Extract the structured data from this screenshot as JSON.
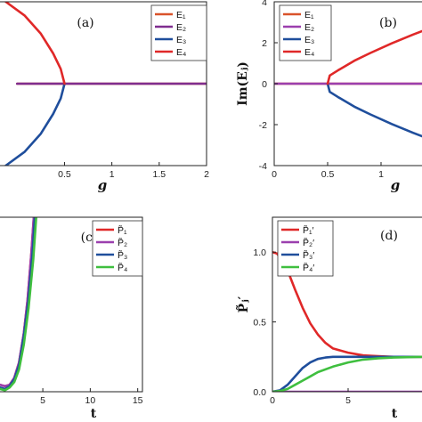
{
  "chart_data": [
    {
      "panel": "(a)",
      "type": "line",
      "xlabel": "g",
      "ylabel": "",
      "xlim": [
        -0.2,
        2
      ],
      "ylim": [
        -1,
        1
      ],
      "xticks": [
        "0.5",
        "1",
        "1.5",
        "2"
      ],
      "xtick_values": [
        0.5,
        1,
        1.5,
        2
      ],
      "legend": "top-right",
      "series": [
        {
          "name": "E₁",
          "color": "#d9532a",
          "x": [
            0,
            2
          ],
          "y": [
            0,
            0
          ]
        },
        {
          "name": "E₂",
          "color": "#7f2d8f",
          "x": [
            0,
            2
          ],
          "y": [
            0,
            0
          ]
        },
        {
          "name": "E₃",
          "color": "#1f4e9c",
          "x": [
            -0.3,
            -0.12,
            0.08,
            0.25,
            0.38,
            0.46,
            0.5
          ],
          "y": [
            -1.5,
            -1.0,
            -0.83,
            -0.61,
            -0.37,
            -0.18,
            0
          ]
        },
        {
          "name": "E₄",
          "color": "#e02828",
          "x": [
            -0.3,
            -0.12,
            0.08,
            0.25,
            0.38,
            0.46,
            0.5
          ],
          "y": [
            1.5,
            1.0,
            0.83,
            0.61,
            0.37,
            0.18,
            0
          ]
        }
      ]
    },
    {
      "panel": "(b)",
      "type": "line",
      "xlabel": "g",
      "ylabel": "Im(Eⱼ)",
      "xlim": [
        0,
        1.4
      ],
      "ylim": [
        -4,
        4
      ],
      "xticks": [
        "0",
        "0.5",
        "1"
      ],
      "xtick_values": [
        0,
        0.5,
        1
      ],
      "yticks": [
        "-4",
        "-2",
        "0",
        "2",
        "4"
      ],
      "ytick_values": [
        -4,
        -2,
        0,
        2,
        4
      ],
      "legend": "top-left",
      "series": [
        {
          "name": "E₁",
          "color": "#d9532a",
          "x": [
            0,
            1.4
          ],
          "y": [
            0,
            0
          ]
        },
        {
          "name": "E₂",
          "color": "#9b3fae",
          "x": [
            0,
            1.4
          ],
          "y": [
            0,
            0
          ]
        },
        {
          "name": "E₃",
          "color": "#1f4e9c",
          "x": [
            0.5,
            0.52,
            0.6,
            0.75,
            0.9,
            1.1,
            1.3,
            1.4
          ],
          "y": [
            0,
            -0.4,
            -0.66,
            -1.12,
            -1.5,
            -1.97,
            -2.4,
            -2.6
          ]
        },
        {
          "name": "E₄",
          "color": "#e02828",
          "x": [
            0.5,
            0.52,
            0.6,
            0.75,
            0.9,
            1.1,
            1.3,
            1.4
          ],
          "y": [
            0,
            0.4,
            0.66,
            1.12,
            1.5,
            1.97,
            2.4,
            2.6
          ]
        }
      ]
    },
    {
      "panel": "(c)",
      "type": "line",
      "xlabel": "t",
      "ylabel": "",
      "xlim": [
        0.3,
        15.5
      ],
      "ylim": [
        0,
        1.25
      ],
      "xticks": [
        "5",
        "10",
        "15"
      ],
      "xtick_values": [
        5,
        10,
        15
      ],
      "legend": "top-right",
      "series": [
        {
          "name": "P̃₁",
          "color": "#e02828",
          "x": [
            0.5,
            1.0,
            1.5,
            2.0,
            2.5,
            3.0,
            3.4,
            3.8,
            4.1
          ],
          "y": [
            0.05,
            0.04,
            0.05,
            0.1,
            0.21,
            0.42,
            0.66,
            1.0,
            1.3
          ]
        },
        {
          "name": "P̃₂",
          "color": "#9b3fae",
          "x": [
            0.5,
            1.0,
            1.5,
            2.0,
            2.5,
            3.0,
            3.4,
            3.8,
            4.1
          ],
          "y": [
            0.05,
            0.04,
            0.05,
            0.1,
            0.21,
            0.42,
            0.66,
            1.0,
            1.3
          ]
        },
        {
          "name": "P̃₃",
          "color": "#1f4e9c",
          "x": [
            0.5,
            1.0,
            1.5,
            2.0,
            2.5,
            3.0,
            3.45,
            3.9,
            4.2
          ],
          "y": [
            0.03,
            0.02,
            0.04,
            0.09,
            0.19,
            0.4,
            0.64,
            0.98,
            1.3
          ]
        },
        {
          "name": "P̃₄",
          "color": "#3fbf3f",
          "x": [
            0.5,
            1.0,
            1.5,
            2.0,
            2.5,
            3.0,
            3.5,
            4.0,
            4.35
          ],
          "y": [
            0.02,
            0.01,
            0.03,
            0.07,
            0.16,
            0.34,
            0.6,
            0.95,
            1.3
          ]
        }
      ]
    },
    {
      "panel": "(d)",
      "type": "line",
      "xlabel": "t",
      "ylabel": "P̃ⱼ′",
      "xlim": [
        0,
        10
      ],
      "ylim": [
        0,
        1.25
      ],
      "xticks": [
        "0",
        "5"
      ],
      "xtick_values": [
        0,
        5
      ],
      "yticks": [
        "0.0",
        "0.5",
        "1.0"
      ],
      "ytick_values": [
        0,
        0.5,
        1.0
      ],
      "legend": "top-left",
      "series": [
        {
          "name": "P̃₁′",
          "color": "#e02828",
          "x": [
            0,
            0.3,
            0.6,
            1.0,
            1.5,
            2.0,
            2.5,
            3.0,
            3.5,
            4.0,
            5.0,
            6.0,
            7.0,
            8.0,
            10.0
          ],
          "y": [
            1.0,
            0.99,
            0.95,
            0.87,
            0.73,
            0.6,
            0.49,
            0.41,
            0.35,
            0.31,
            0.28,
            0.26,
            0.255,
            0.25,
            0.25
          ]
        },
        {
          "name": "P̃₂′",
          "color": "#9b3fae",
          "x": [
            0,
            10
          ],
          "y": [
            0,
            0
          ]
        },
        {
          "name": "P̃₃′",
          "color": "#1f4e9c",
          "x": [
            0,
            0.5,
            1.0,
            1.5,
            2.0,
            2.5,
            3.0,
            3.5,
            4.0,
            5.0,
            6.0,
            8.0,
            10.0
          ],
          "y": [
            0,
            0.01,
            0.05,
            0.11,
            0.17,
            0.21,
            0.235,
            0.245,
            0.25,
            0.25,
            0.25,
            0.25,
            0.25
          ]
        },
        {
          "name": "P̃₄′",
          "color": "#3fbf3f",
          "x": [
            0,
            0.5,
            1.0,
            1.5,
            2.0,
            2.5,
            3.0,
            4.0,
            5.0,
            6.0,
            7.0,
            8.0,
            10.0
          ],
          "y": [
            0,
            0.005,
            0.02,
            0.05,
            0.08,
            0.11,
            0.14,
            0.18,
            0.21,
            0.23,
            0.24,
            0.245,
            0.25
          ]
        }
      ]
    }
  ]
}
